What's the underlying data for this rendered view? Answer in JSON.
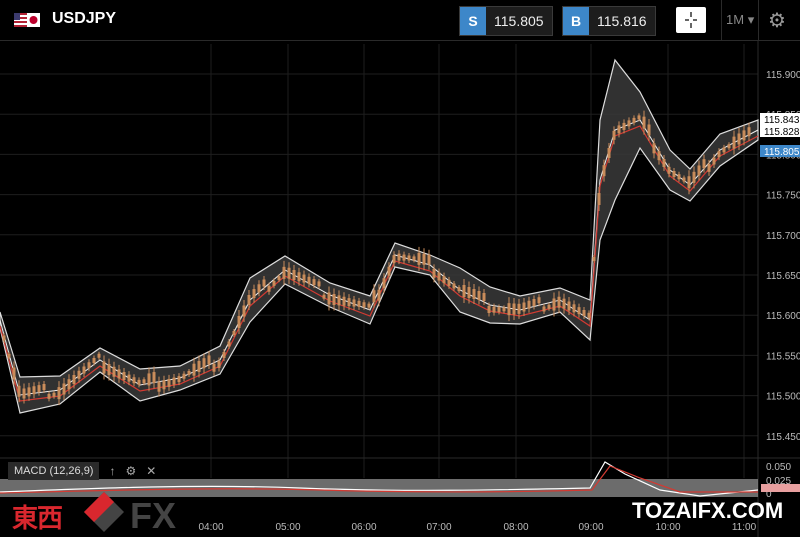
{
  "header": {
    "symbol": "USDJPY",
    "sell_label": "S",
    "sell_price": "115.805",
    "buy_label": "B",
    "buy_price": "115.816",
    "timeframe": "1M",
    "icons": [
      "flag-icon",
      "crosshair-icon",
      "chevron-down-icon",
      "gear-icon"
    ]
  },
  "chart_data": {
    "type": "candlestick",
    "y_ticks": [
      "115.900",
      "115.850",
      "115.800",
      "115.750",
      "115.700",
      "115.650",
      "115.600",
      "115.550",
      "115.500",
      "115.450"
    ],
    "x_ticks": [
      "04:00",
      "05:00",
      "06:00",
      "07:00",
      "08:00",
      "09:00",
      "10:00",
      "11:00"
    ],
    "price_labels": [
      "115.843",
      "115.828",
      "115.805"
    ],
    "indicators": [
      "Bollinger Bands",
      "Moving Average"
    ],
    "macd": {
      "label": "MACD (12,26,9)",
      "y_ticks": [
        "0.050",
        "0.025",
        "0"
      ]
    },
    "colors": {
      "background": "#000000",
      "band": "#ffffff",
      "ma": "#d33a32",
      "candle": "#c98c5a",
      "highlight": "#3d87c9"
    }
  },
  "watermark": {
    "left": "東西",
    "right": "FX",
    "site": "TOZAIFX.COM"
  }
}
